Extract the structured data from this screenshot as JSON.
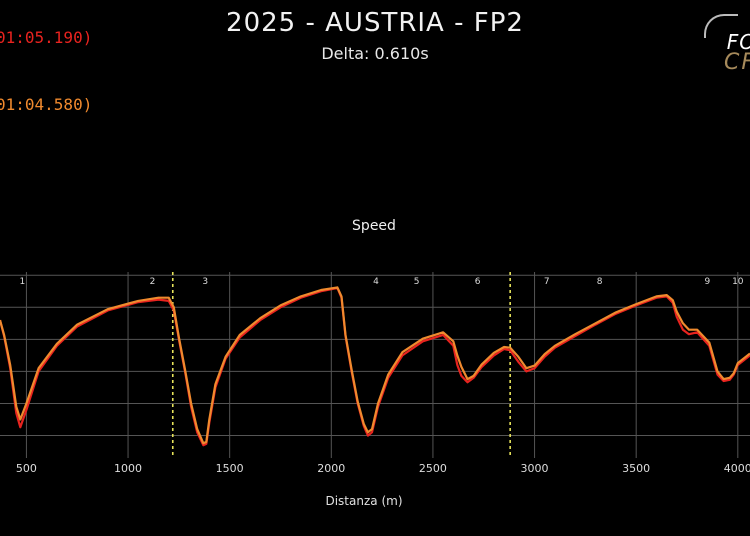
{
  "header": {
    "title": "2025 - AUSTRIA - FP2",
    "subtitle": "Delta: 0.610s"
  },
  "laps": [
    {
      "label": "01:05.190)",
      "color": "#e8231f"
    },
    {
      "label": "01:04.580)",
      "color": "#f08a2e"
    }
  ],
  "logo": {
    "top": "FO",
    "bottom": "CF"
  },
  "chart_data": {
    "type": "line",
    "title": "Speed",
    "xlabel": "Distanza (m)",
    "ylabel": "",
    "xlim": [
      370,
      4060
    ],
    "ylim": [
      40,
      330
    ],
    "grid": true,
    "x_ticks": [
      500,
      1000,
      1500,
      2000,
      2500,
      3000,
      3500,
      4000
    ],
    "y_ticks": [
      75,
      125,
      175,
      225,
      275,
      325
    ],
    "sector_lines": [
      1220,
      2880
    ],
    "corners": [
      {
        "label": "1",
        "x": 480
      },
      {
        "label": "2",
        "x": 1120
      },
      {
        "label": "3",
        "x": 1380
      },
      {
        "label": "4",
        "x": 2220
      },
      {
        "label": "5",
        "x": 2420
      },
      {
        "label": "6",
        "x": 2720
      },
      {
        "label": "7",
        "x": 3060
      },
      {
        "label": "8",
        "x": 3320
      },
      {
        "label": "9",
        "x": 3850
      },
      {
        "label": "10",
        "x": 4000
      }
    ],
    "series": [
      {
        "color": "#e8231f",
        "x": [
          370,
          390,
          420,
          450,
          470,
          500,
          560,
          650,
          750,
          900,
          1050,
          1150,
          1200,
          1225,
          1250,
          1280,
          1310,
          1340,
          1370,
          1385,
          1400,
          1430,
          1480,
          1550,
          1650,
          1750,
          1850,
          1950,
          2030,
          2050,
          2070,
          2100,
          2130,
          2160,
          2180,
          2200,
          2230,
          2280,
          2350,
          2450,
          2550,
          2600,
          2620,
          2640,
          2670,
          2700,
          2740,
          2800,
          2850,
          2880,
          2920,
          2960,
          3000,
          3050,
          3100,
          3200,
          3300,
          3400,
          3500,
          3600,
          3650,
          3680,
          3700,
          3730,
          3760,
          3800,
          3860,
          3900,
          3930,
          3960,
          3980,
          4000,
          4060
        ],
        "y": [
          255,
          230,
          180,
          110,
          88,
          115,
          175,
          215,
          245,
          270,
          283,
          287,
          285,
          270,
          225,
          175,
          120,
          80,
          60,
          62,
          95,
          150,
          195,
          228,
          255,
          275,
          290,
          300,
          305,
          290,
          230,
          175,
          125,
          90,
          75,
          80,
          120,
          165,
          200,
          222,
          232,
          215,
          185,
          168,
          158,
          165,
          182,
          200,
          210,
          208,
          190,
          175,
          180,
          198,
          212,
          230,
          248,
          265,
          278,
          290,
          292,
          282,
          260,
          240,
          233,
          236,
          215,
          170,
          160,
          162,
          170,
          185,
          200
        ]
      },
      {
        "color": "#f08a2e",
        "x": [
          370,
          390,
          420,
          450,
          470,
          500,
          560,
          650,
          750,
          900,
          1050,
          1150,
          1200,
          1225,
          1250,
          1280,
          1310,
          1340,
          1370,
          1385,
          1400,
          1430,
          1480,
          1550,
          1650,
          1750,
          1850,
          1950,
          2030,
          2050,
          2070,
          2100,
          2130,
          2160,
          2180,
          2200,
          2230,
          2280,
          2350,
          2450,
          2550,
          2600,
          2620,
          2640,
          2670,
          2700,
          2740,
          2800,
          2850,
          2880,
          2920,
          2960,
          3000,
          3050,
          3100,
          3200,
          3300,
          3400,
          3500,
          3600,
          3650,
          3680,
          3700,
          3730,
          3760,
          3800,
          3860,
          3900,
          3930,
          3960,
          3980,
          4000,
          4060
        ],
        "y": [
          255,
          232,
          185,
          120,
          100,
          125,
          180,
          218,
          248,
          272,
          285,
          290,
          290,
          275,
          228,
          178,
          125,
          85,
          63,
          65,
          100,
          155,
          198,
          232,
          258,
          278,
          292,
          302,
          306,
          292,
          232,
          178,
          128,
          93,
          80,
          85,
          125,
          170,
          205,
          226,
          236,
          222,
          200,
          182,
          163,
          168,
          186,
          204,
          213,
          212,
          198,
          180,
          184,
          202,
          215,
          233,
          250,
          267,
          280,
          292,
          294,
          286,
          268,
          250,
          240,
          240,
          220,
          175,
          163,
          165,
          172,
          188,
          203
        ]
      }
    ]
  }
}
